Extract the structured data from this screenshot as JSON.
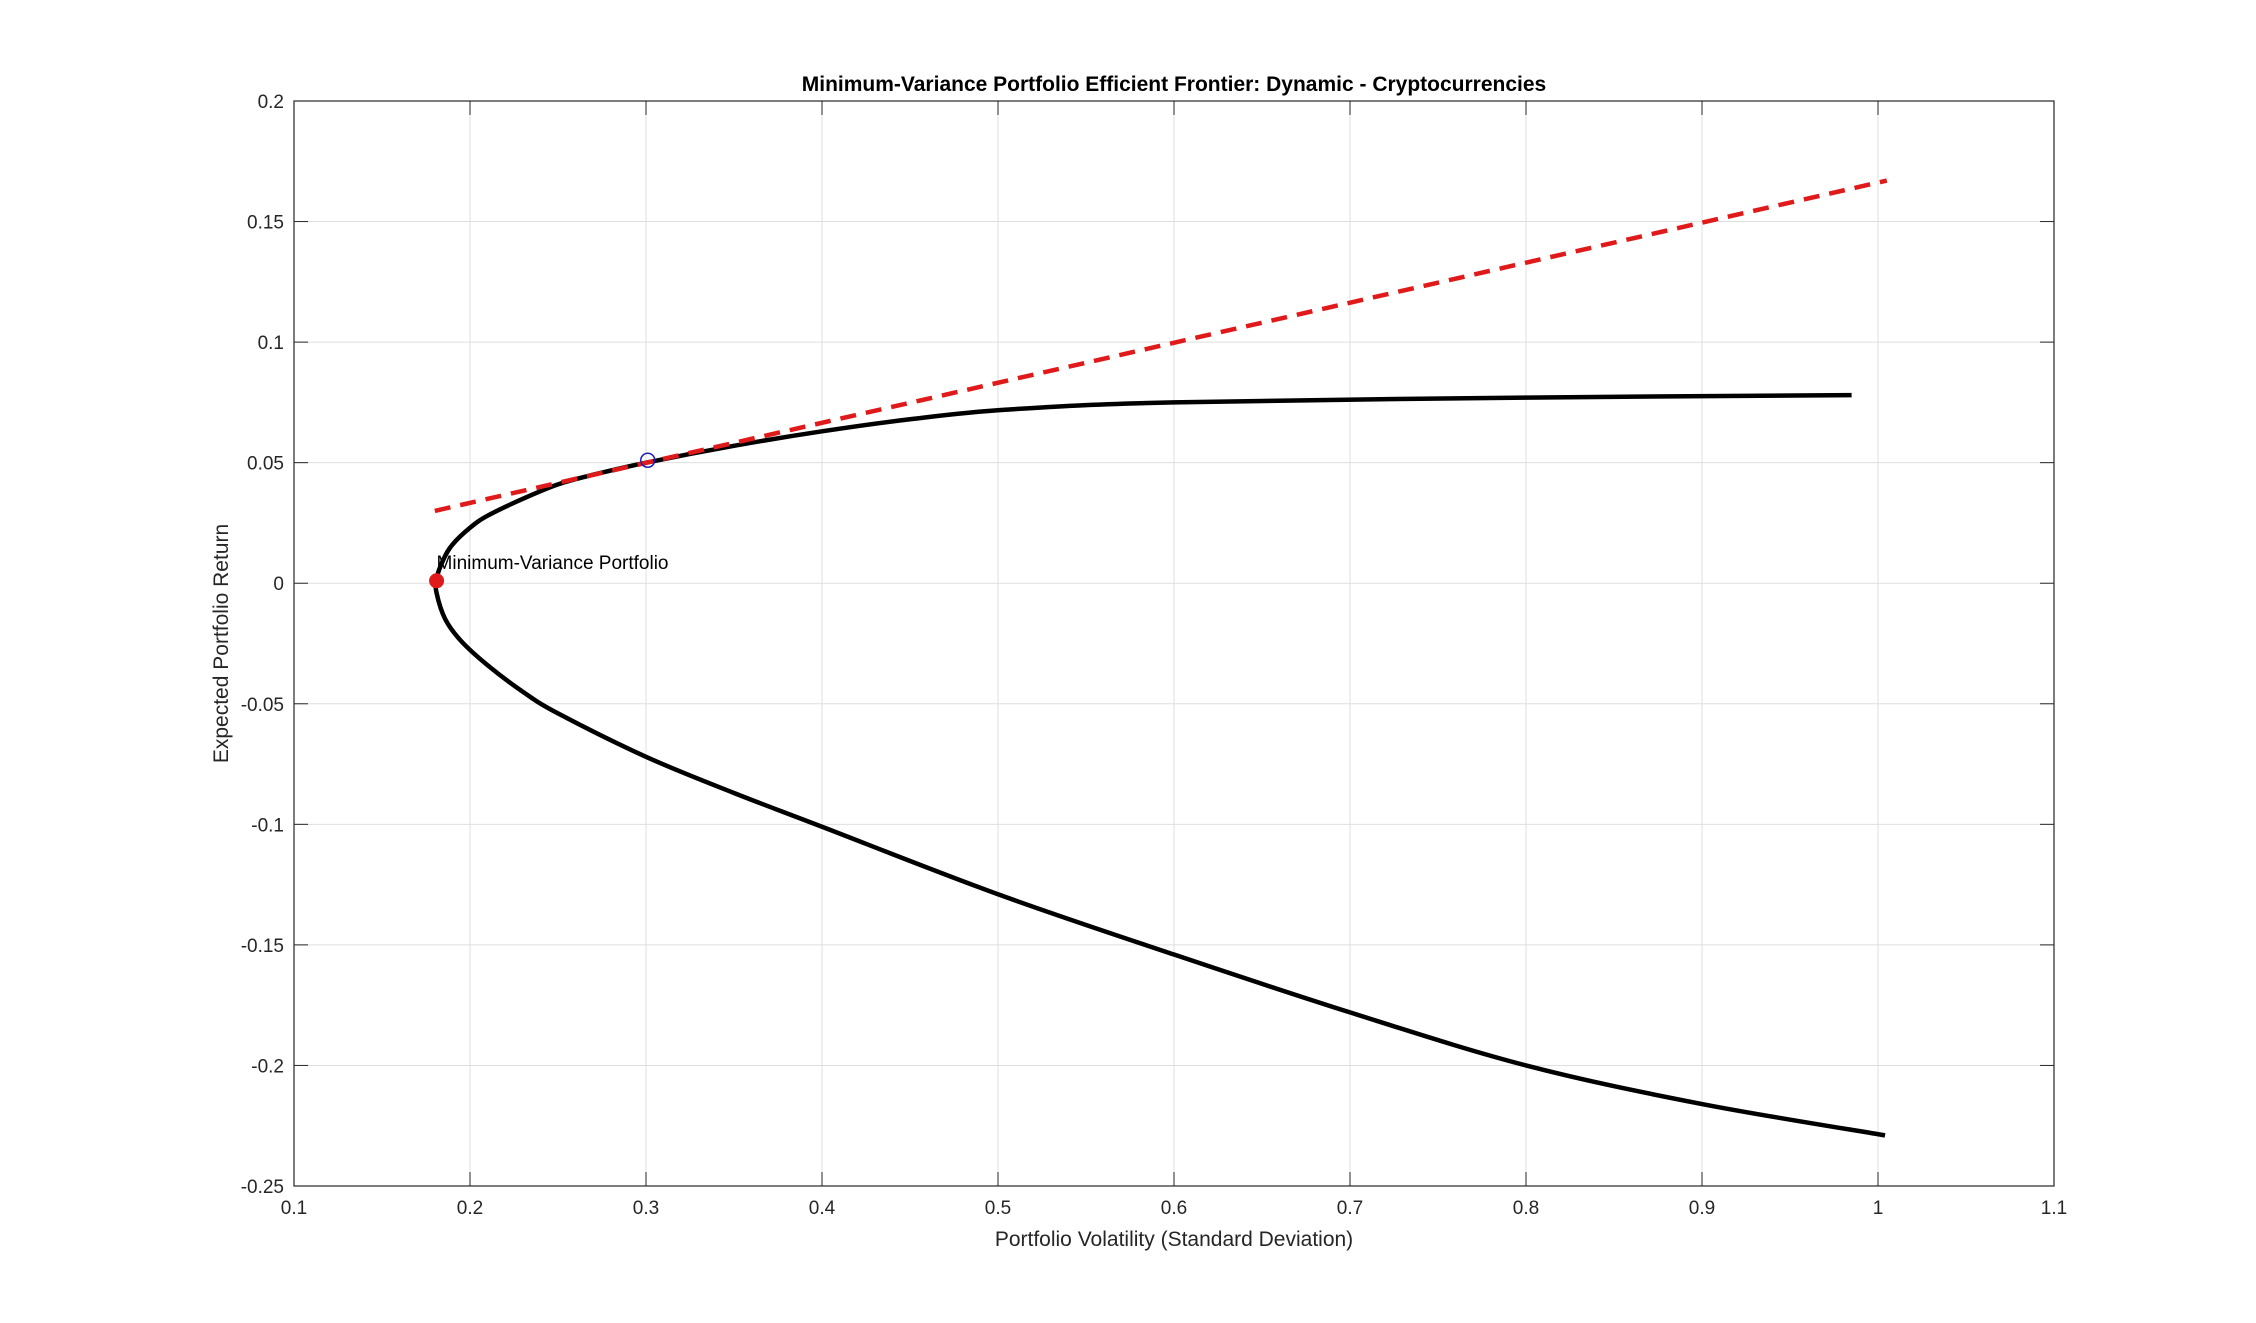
{
  "chart_data": {
    "type": "line",
    "title": "Minimum-Variance Portfolio Efficient Frontier: Dynamic - Cryptocurrencies",
    "xlabel": "Portfolio Volatility (Standard Deviation)",
    "ylabel": "Expected Portfolio Return",
    "xlim": [
      0.1,
      1.1
    ],
    "ylim": [
      -0.25,
      0.2
    ],
    "xticks": [
      0.1,
      0.2,
      0.3,
      0.4,
      0.5,
      0.6,
      0.7,
      0.8,
      0.9,
      1,
      1.1
    ],
    "xtick_labels": [
      "0.1",
      "0.2",
      "0.3",
      "0.4",
      "0.5",
      "0.6",
      "0.7",
      "0.8",
      "0.9",
      "1",
      "1.1"
    ],
    "yticks": [
      -0.25,
      -0.2,
      -0.15,
      -0.1,
      -0.05,
      0,
      0.05,
      0.1,
      0.15,
      0.2
    ],
    "ytick_labels": [
      "-0.25",
      "-0.2",
      "-0.15",
      "-0.1",
      "-0.05",
      "0",
      "0.05",
      "0.1",
      "0.15",
      "0.2"
    ],
    "grid": true,
    "series": [
      {
        "style": "solid",
        "color": "#000000",
        "points": [
          [
            0.985,
            0.078
          ],
          [
            0.8,
            0.077
          ],
          [
            0.6,
            0.075
          ],
          [
            0.505,
            0.072
          ],
          [
            0.45,
            0.068
          ],
          [
            0.4,
            0.063
          ],
          [
            0.35,
            0.057
          ],
          [
            0.3,
            0.05
          ],
          [
            0.27,
            0.045
          ],
          [
            0.25,
            0.041
          ],
          [
            0.23,
            0.035
          ],
          [
            0.21,
            0.028
          ],
          [
            0.2,
            0.023
          ],
          [
            0.19,
            0.016
          ],
          [
            0.185,
            0.01
          ],
          [
            0.181,
            0.002
          ],
          [
            0.181,
            -0.004
          ],
          [
            0.186,
            -0.015
          ],
          [
            0.195,
            -0.024
          ],
          [
            0.21,
            -0.034
          ],
          [
            0.23,
            -0.045
          ],
          [
            0.25,
            -0.054
          ],
          [
            0.3,
            -0.072
          ],
          [
            0.35,
            -0.087
          ],
          [
            0.4,
            -0.101
          ],
          [
            0.5,
            -0.129
          ],
          [
            0.6,
            -0.154
          ],
          [
            0.7,
            -0.178
          ],
          [
            0.8,
            -0.2
          ],
          [
            0.9,
            -0.216
          ],
          [
            1.004,
            -0.229
          ]
        ]
      },
      {
        "style": "dashed",
        "color": "#e01a1a",
        "points": [
          [
            0.18,
            0.03
          ],
          [
            1.005,
            0.167
          ]
        ]
      }
    ],
    "markers": [
      {
        "shape": "filled-circle",
        "color": "#e01a1a",
        "x": 0.181,
        "y": 0.001
      },
      {
        "shape": "open-circle",
        "color": "#1f1fb0",
        "x": 0.301,
        "y": 0.051
      }
    ],
    "annotations": [
      {
        "text": "Minimum-Variance Portfolio",
        "x": 0.181,
        "y": 0.006
      }
    ]
  }
}
